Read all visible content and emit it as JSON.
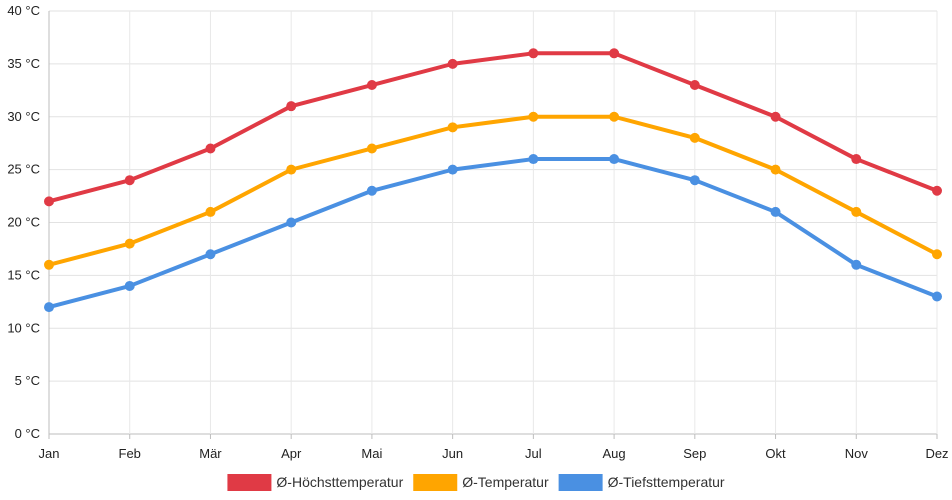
{
  "chart_data": {
    "type": "line",
    "title": "",
    "xlabel": "",
    "ylabel": "",
    "categories": [
      "Jan",
      "Feb",
      "Mär",
      "Apr",
      "Mai",
      "Jun",
      "Jul",
      "Aug",
      "Sep",
      "Okt",
      "Nov",
      "Dez"
    ],
    "ylim": [
      0,
      40
    ],
    "ytick_step": 5,
    "y_unit": " °C",
    "grid": true,
    "legend_position": "bottom",
    "series": [
      {
        "name": "Ø-Höchsttemperatur",
        "color": "#e03a45",
        "values": [
          22,
          24,
          27,
          31,
          33,
          35,
          36,
          36,
          33,
          30,
          26,
          23
        ]
      },
      {
        "name": "Ø-Temperatur",
        "color": "#ffa500",
        "values": [
          16,
          18,
          21,
          25,
          27,
          29,
          30,
          30,
          28,
          25,
          21,
          17
        ]
      },
      {
        "name": "Ø-Tiefsttemperatur",
        "color": "#4a90e2",
        "values": [
          12,
          14,
          17,
          20,
          23,
          25,
          26,
          26,
          24,
          21,
          16,
          13
        ]
      }
    ]
  }
}
